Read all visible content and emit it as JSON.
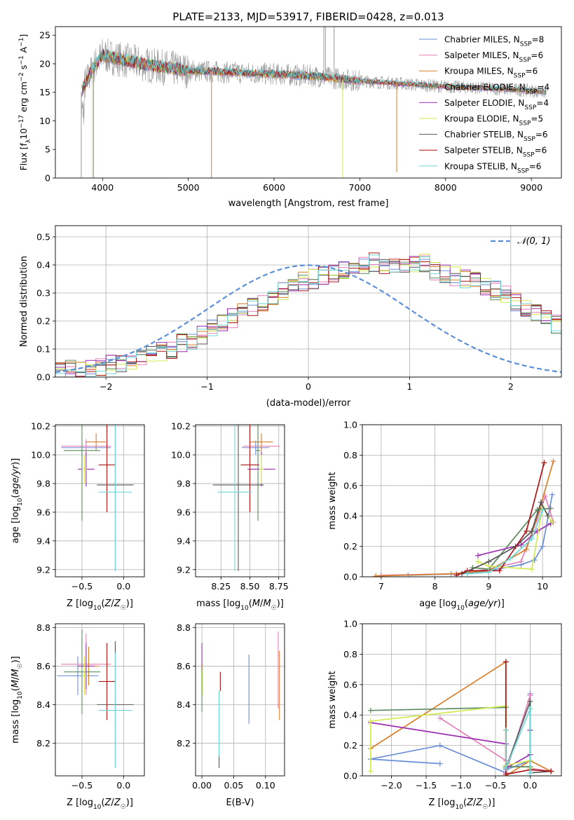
{
  "figure_title": "PLATE=2133, MJD=53917, FIBERID=0428, z=0.013",
  "colors": {
    "Chabrier MILES": "#6a8fd8",
    "Salpeter MILES": "#e57fb8",
    "Kroupa MILES": "#d87f2a",
    "Chabrier ELODIE": "#5a8a5e",
    "Salpeter ELODIE": "#9a2fb0",
    "Kroupa ELODIE": "#d2ea50",
    "Chabrier STELIB": "#555555",
    "Salpeter STELIB": "#a81414",
    "Kroupa STELIB": "#6fd6d6",
    "grid": "#b0b0b0",
    "gaussian": "#5b8fd8"
  },
  "chart_data": [
    {
      "id": "spectrum",
      "type": "line",
      "xlabel": "wavelength [Angstrom, rest frame]",
      "ylabel": "Flux [f_λ 10^-17 erg cm^-2 s^-1 A^-1]",
      "xlim": [
        3450,
        9350
      ],
      "ylim": [
        0,
        26.5
      ],
      "xticks": [
        4000,
        5000,
        6000,
        7000,
        8000,
        9000
      ],
      "yticks": [
        0,
        5,
        10,
        15,
        20,
        25
      ],
      "legend_position": "top-right",
      "grid": false,
      "continuum": {
        "x": [
          3750,
          3900,
          4000,
          4200,
          4500,
          5000,
          5500,
          6000,
          6500,
          7000,
          7500,
          8000,
          8500,
          9000,
          9200
        ],
        "y": [
          15,
          19.5,
          21.5,
          20.8,
          19.8,
          18.8,
          18.5,
          18.2,
          17.8,
          17.0,
          16.5,
          16.0,
          15.7,
          15.3,
          15.0
        ]
      },
      "series": [
        {
          "name": "Chabrier MILES",
          "n_ssp": "8"
        },
        {
          "name": "Salpeter MILES",
          "n_ssp": "6"
        },
        {
          "name": "Kroupa MILES",
          "n_ssp": "6"
        },
        {
          "name": "Chabrier ELODIE",
          "n_ssp": "4"
        },
        {
          "name": "Salpeter ELODIE",
          "n_ssp": "4"
        },
        {
          "name": "Kroupa ELODIE",
          "n_ssp": "5"
        },
        {
          "name": "Chabrier STELIB",
          "n_ssp": "6"
        },
        {
          "name": "Salpeter STELIB",
          "n_ssp": "6"
        },
        {
          "name": "Kroupa STELIB",
          "n_ssp": "6"
        }
      ]
    },
    {
      "id": "residuals",
      "type": "histogram",
      "xlabel": "(data-model)/error",
      "ylabel": "Normed distribution",
      "xlim": [
        -2.5,
        2.5
      ],
      "ylim": [
        0,
        0.54
      ],
      "xticks": [
        -2,
        -1,
        0,
        1,
        2
      ],
      "yticks": [
        0.0,
        0.1,
        0.2,
        0.3,
        0.4,
        0.5
      ],
      "grid": true,
      "legend": "N(0,1)",
      "legend_position": "top-right",
      "bin_width": 0.1,
      "x_start": -2.5,
      "profile": [
        0.02,
        0.025,
        0.03,
        0.035,
        0.04,
        0.045,
        0.05,
        0.06,
        0.07,
        0.08,
        0.09,
        0.1,
        0.12,
        0.13,
        0.15,
        0.17,
        0.19,
        0.21,
        0.23,
        0.25,
        0.27,
        0.29,
        0.31,
        0.32,
        0.34,
        0.35,
        0.36,
        0.37,
        0.38,
        0.39,
        0.4,
        0.41,
        0.4,
        0.39,
        0.39,
        0.4,
        0.41,
        0.38,
        0.37,
        0.36,
        0.35,
        0.34,
        0.32,
        0.31,
        0.29,
        0.27,
        0.25,
        0.23,
        0.21,
        0.19,
        0.17,
        0.15,
        0.13,
        0.12,
        0.1,
        0.09,
        0.08,
        0.07,
        0.06,
        0.05,
        0.045,
        0.04,
        0.035,
        0.03,
        0.025
      ]
    },
    {
      "id": "age_vs_Z",
      "type": "errorbar",
      "xlabel": "Z [log10(Z/Z☉)]",
      "ylabel": "age  [log10(age/yr)]",
      "xlim": [
        -0.82,
        0.25
      ],
      "ylim": [
        9.15,
        10.21
      ],
      "xticks": [
        -0.5,
        0.0
      ],
      "yticks": [
        9.2,
        9.4,
        9.6,
        9.8,
        10.0,
        10.2
      ],
      "grid": true,
      "points": [
        {
          "series": "Chabrier MILES",
          "x": -0.45,
          "xerr": 0.3,
          "y": 10.05,
          "yerr": 0.05
        },
        {
          "series": "Salpeter MILES",
          "x": -0.45,
          "xerr": 0.3,
          "y": 10.06,
          "yerr": 0.05
        },
        {
          "series": "Kroupa MILES",
          "x": -0.33,
          "xerr": 0.12,
          "y": 10.09,
          "yerr": 0.06
        },
        {
          "series": "Chabrier ELODIE",
          "x": -0.5,
          "xerr": 0.22,
          "y": 10.03,
          "yerr": 0.49
        },
        {
          "series": "Salpeter ELODIE",
          "x": -0.45,
          "xerr": 0.1,
          "y": 9.9,
          "yerr": 0.12
        },
        {
          "series": "Kroupa ELODIE",
          "x": -0.47,
          "xerr": 0.03,
          "y": 9.9,
          "yerr": 0.1
        },
        {
          "series": "Chabrier STELIB",
          "x": -0.1,
          "xerr": 0.22,
          "y": 9.79,
          "yerr": 0.6
        },
        {
          "series": "Salpeter STELIB",
          "x": -0.2,
          "xerr": 0.1,
          "y": 9.93,
          "yerr": 0.33
        },
        {
          "series": "Kroupa STELIB",
          "x": -0.1,
          "xerr": 0.2,
          "y": 9.74,
          "yerr": 0.55
        }
      ]
    },
    {
      "id": "age_vs_mass",
      "type": "errorbar",
      "xlabel": "mass [log10(M/M☉)]",
      "ylabel": "",
      "xlim": [
        8.03,
        8.8
      ],
      "ylim": [
        9.15,
        10.21
      ],
      "xticks": [
        8.25,
        8.5,
        8.75
      ],
      "yticks": [
        9.2,
        9.4,
        9.6,
        9.8,
        10.0,
        10.2
      ],
      "grid": true,
      "points": [
        {
          "series": "Chabrier MILES",
          "x": 8.55,
          "xerr": 0.12,
          "y": 10.05,
          "yerr": 0.05
        },
        {
          "series": "Salpeter MILES",
          "x": 8.6,
          "xerr": 0.16,
          "y": 10.06,
          "yerr": 0.05
        },
        {
          "series": "Kroupa MILES",
          "x": 8.6,
          "xerr": 0.1,
          "y": 10.09,
          "yerr": 0.06
        },
        {
          "series": "Chabrier ELODIE",
          "x": 8.57,
          "xerr": 0.02,
          "y": 10.03,
          "yerr": 0.49
        },
        {
          "series": "Salpeter ELODIE",
          "x": 8.6,
          "xerr": 0.12,
          "y": 9.9,
          "yerr": 0.12
        },
        {
          "series": "Kroupa ELODIE",
          "x": 8.6,
          "xerr": 0.02,
          "y": 9.9,
          "yerr": 0.1
        },
        {
          "series": "Chabrier STELIB",
          "x": 8.4,
          "xerr": 0.22,
          "y": 9.79,
          "yerr": 0.6
        },
        {
          "series": "Salpeter STELIB",
          "x": 8.5,
          "xerr": 0.08,
          "y": 9.93,
          "yerr": 0.33
        },
        {
          "series": "Kroupa STELIB",
          "x": 8.37,
          "xerr": 0.15,
          "y": 9.74,
          "yerr": 0.55
        }
      ]
    },
    {
      "id": "mass_weight_vs_age",
      "type": "line",
      "xlabel": "age  [log10(age/yr)]",
      "ylabel": "mass weight",
      "xlim": [
        6.65,
        10.35
      ],
      "ylim": [
        0,
        1.0
      ],
      "xticks": [
        7,
        8,
        9,
        10
      ],
      "yticks": [
        0.0,
        0.2,
        0.4,
        0.6,
        0.8,
        1.0
      ],
      "grid": true,
      "series": [
        {
          "name": "Chabrier MILES",
          "x": [
            7.5,
            8.5,
            9.0,
            9.6,
            9.85,
            10.0,
            10.18
          ],
          "y": [
            0.01,
            0.02,
            0.04,
            0.08,
            0.11,
            0.2,
            0.54
          ]
        },
        {
          "name": "Salpeter MILES",
          "x": [
            7.0,
            8.4,
            9.0,
            9.6,
            9.9,
            10.05,
            10.2
          ],
          "y": [
            0.01,
            0.02,
            0.05,
            0.1,
            0.38,
            0.53,
            0.36
          ]
        },
        {
          "name": "Kroupa MILES",
          "x": [
            6.9,
            8.3,
            9.0,
            9.7,
            9.95,
            10.2
          ],
          "y": [
            0.005,
            0.02,
            0.04,
            0.18,
            0.45,
            0.76
          ]
        },
        {
          "name": "Chabrier ELODIE",
          "x": [
            8.7,
            9.0,
            9.9,
            10.15
          ],
          "y": [
            0.06,
            0.05,
            0.44,
            0.45
          ]
        },
        {
          "name": "Salpeter ELODIE",
          "x": [
            8.8,
            9.6,
            9.9,
            10.15
          ],
          "y": [
            0.14,
            0.21,
            0.3,
            0.35
          ]
        },
        {
          "name": "Kroupa ELODIE",
          "x": [
            8.8,
            9.0,
            9.8,
            10.0,
            10.18
          ],
          "y": [
            0.1,
            0.07,
            0.05,
            0.46,
            0.36
          ]
        },
        {
          "name": "Chabrier STELIB",
          "x": [
            8.5,
            9.0,
            9.5,
            9.8,
            9.97,
            10.1
          ],
          "y": [
            0.02,
            0.1,
            0.2,
            0.3,
            0.49,
            0.4
          ]
        },
        {
          "name": "Salpeter STELIB",
          "x": [
            8.4,
            8.6,
            9.2,
            9.7,
            10.03
          ],
          "y": [
            0.01,
            0.04,
            0.04,
            0.3,
            0.75
          ]
        },
        {
          "name": "Kroupa STELIB",
          "x": [
            8.6,
            9.0,
            9.4,
            9.8,
            10.0
          ],
          "y": [
            0.02,
            0.03,
            0.12,
            0.25,
            0.44
          ]
        }
      ]
    },
    {
      "id": "mass_vs_Z",
      "type": "errorbar",
      "xlabel": "Z [log10(Z/Z☉)]",
      "ylabel": "mass [log10(M/M☉)]",
      "xlim": [
        -0.82,
        0.25
      ],
      "ylim": [
        8.03,
        8.82
      ],
      "xticks": [
        -0.5,
        0.0
      ],
      "yticks": [
        8.2,
        8.4,
        8.6,
        8.8
      ],
      "grid": true,
      "points": [
        {
          "series": "Chabrier MILES",
          "x": -0.55,
          "xerr": 0.25,
          "y": 8.55,
          "yerr": 0.1
        },
        {
          "series": "Salpeter MILES",
          "x": -0.45,
          "xerr": 0.3,
          "y": 8.61,
          "yerr": 0.16
        },
        {
          "series": "Kroupa MILES",
          "x": -0.42,
          "xerr": 0.12,
          "y": 8.6,
          "yerr": 0.1
        },
        {
          "series": "Chabrier ELODIE",
          "x": -0.5,
          "xerr": 0.22,
          "y": 8.57,
          "yerr": 0.22
        },
        {
          "series": "Salpeter ELODIE",
          "x": -0.45,
          "xerr": 0.1,
          "y": 8.6,
          "yerr": 0.12
        },
        {
          "series": "Kroupa ELODIE",
          "x": -0.47,
          "xerr": 0.03,
          "y": 8.55,
          "yerr": 0.1
        },
        {
          "series": "Chabrier STELIB",
          "x": -0.1,
          "xerr": 0.22,
          "y": 8.4,
          "yerr": 0.33
        },
        {
          "series": "Salpeter STELIB",
          "x": -0.2,
          "xerr": 0.1,
          "y": 8.52,
          "yerr": 0.2
        },
        {
          "series": "Kroupa STELIB",
          "x": -0.1,
          "xerr": 0.2,
          "y": 8.37,
          "yerr": 0.3
        }
      ]
    },
    {
      "id": "mass_vs_EBV",
      "type": "errorbar",
      "xlabel": "E(B-V)",
      "ylabel": "",
      "xlim": [
        -0.01,
        0.13
      ],
      "ylim": [
        8.03,
        8.82
      ],
      "xticks": [
        0.0,
        0.05,
        0.1
      ],
      "yticks": [
        8.2,
        8.4,
        8.6,
        8.8
      ],
      "grid": true,
      "points": [
        {
          "series": "Chabrier MILES",
          "x": 0.074,
          "xerr": 0,
          "y": 8.48,
          "yerr": 0.18
        },
        {
          "series": "Salpeter MILES",
          "x": 0.12,
          "xerr": 0,
          "y": 8.58,
          "yerr": 0.2
        },
        {
          "series": "Kroupa MILES",
          "x": 0.122,
          "xerr": 0,
          "y": 8.5,
          "yerr": 0.18
        },
        {
          "series": "Chabrier ELODIE",
          "x": 0.0,
          "xerr": 0,
          "y": 8.49,
          "yerr": 0.13
        },
        {
          "series": "Salpeter ELODIE",
          "x": 0.0,
          "xerr": 0,
          "y": 8.65,
          "yerr": 0.07
        },
        {
          "series": "Kroupa ELODIE",
          "x": 0.001,
          "xerr": 0,
          "y": 8.53,
          "yerr": 0.08
        },
        {
          "series": "Chabrier STELIB",
          "x": 0.027,
          "xerr": 0,
          "y": 8.27,
          "yerr": 0.2
        },
        {
          "series": "Salpeter STELIB",
          "x": 0.029,
          "xerr": 0,
          "y": 8.52,
          "yerr": 0.05
        },
        {
          "series": "Kroupa STELIB",
          "x": 0.027,
          "xerr": 0,
          "y": 8.3,
          "yerr": 0.17
        }
      ]
    },
    {
      "id": "mass_weight_vs_Z",
      "type": "line",
      "xlabel": "Z [log10(Z/Z☉)]",
      "ylabel": "mass weight",
      "xlim": [
        -2.42,
        0.45
      ],
      "ylim": [
        0,
        1.0
      ],
      "xticks": [
        -2.0,
        -1.5,
        -1.0,
        -0.5,
        0.0
      ],
      "yticks": [
        0.0,
        0.2,
        0.4,
        0.6,
        0.8,
        1.0
      ],
      "grid": true,
      "series": [
        {
          "name": "Chabrier MILES",
          "x": [
            -1.3,
            -2.3,
            -1.3,
            -0.35,
            -0.35,
            0.0,
            0.0
          ],
          "y": [
            0.08,
            0.11,
            0.2,
            0.02,
            0.04,
            0.1,
            0.54
          ]
        },
        {
          "name": "Salpeter MILES",
          "x": [
            -1.3,
            -0.35,
            -0.35,
            0.0,
            0.0,
            0.3
          ],
          "y": [
            0.38,
            0.1,
            0.02,
            0.53,
            0.05,
            0.03
          ]
        },
        {
          "name": "Kroupa MILES",
          "x": [
            -2.3,
            -0.35,
            -0.35,
            0.0,
            0.3
          ],
          "y": [
            0.18,
            0.75,
            0.0,
            0.1,
            0.03
          ]
        },
        {
          "name": "Chabrier ELODIE",
          "x": [
            -2.3,
            -0.35,
            -0.35,
            0.0
          ],
          "y": [
            0.43,
            0.45,
            0.06,
            0.06
          ]
        },
        {
          "name": "Salpeter ELODIE",
          "x": [
            -2.3,
            -0.35,
            -0.35,
            0.0,
            0.0
          ],
          "y": [
            0.35,
            0.21,
            0.05,
            0.14,
            0.3
          ]
        },
        {
          "name": "Kroupa ELODIE",
          "x": [
            -2.3,
            -2.3,
            -0.35,
            -0.35,
            0.0,
            0.0
          ],
          "y": [
            0.03,
            0.36,
            0.46,
            0.07,
            0.1,
            0.05
          ]
        },
        {
          "name": "Chabrier STELIB",
          "x": [
            -0.35,
            -0.35,
            0.0,
            0.0,
            0.3
          ],
          "y": [
            0.3,
            0.05,
            0.49,
            0.02,
            0.03
          ]
        },
        {
          "name": "Salpeter STELIB",
          "x": [
            -0.35,
            -0.35,
            0.0,
            0.3
          ],
          "y": [
            0.75,
            0.01,
            0.04,
            0.03
          ]
        },
        {
          "name": "Kroupa STELIB",
          "x": [
            -0.35,
            -0.35,
            0.0,
            0.0
          ],
          "y": [
            0.3,
            0.05,
            0.44,
            0.02
          ]
        }
      ]
    }
  ]
}
